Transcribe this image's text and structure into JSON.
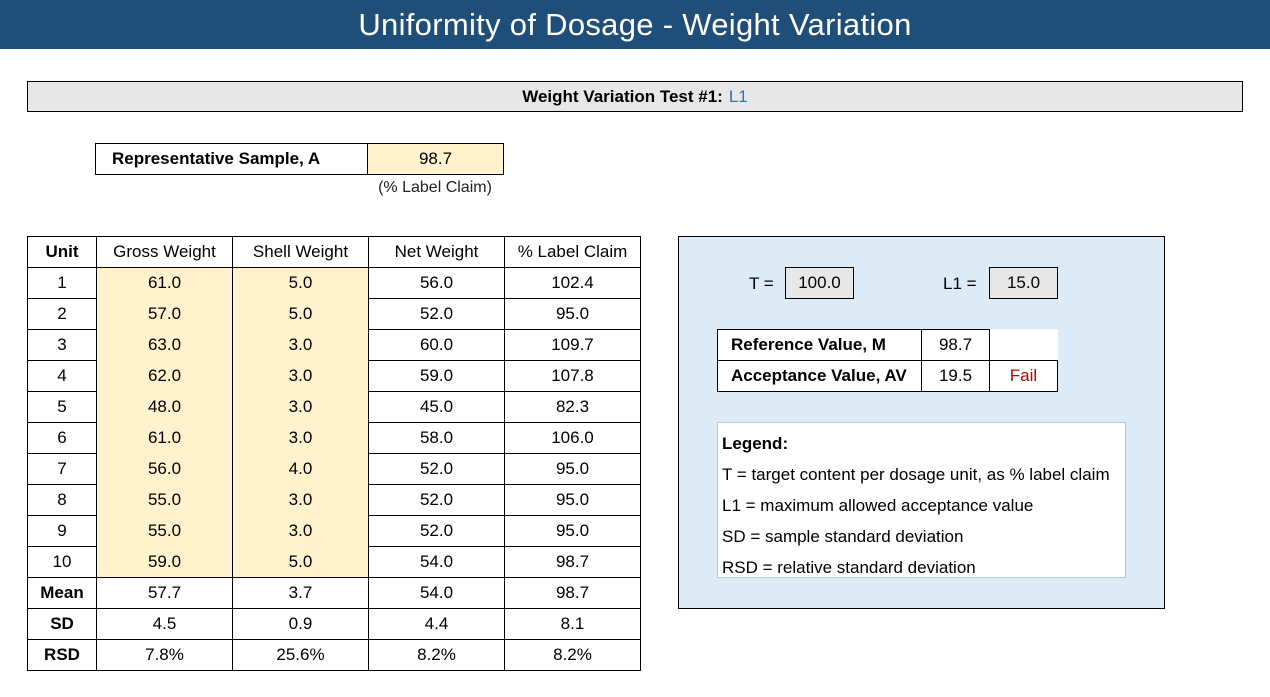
{
  "title": "Uniformity of Dosage - Weight Variation",
  "test": {
    "label": "Weight Variation Test #1:",
    "id": "L1"
  },
  "representative_sample": {
    "label": "Representative Sample, A",
    "value": "98.7",
    "unit": "(% Label Claim)"
  },
  "table": {
    "headers": [
      "Unit",
      "Gross Weight",
      "Shell Weight",
      "Net Weight",
      "% Label Claim"
    ],
    "rows": [
      [
        "1",
        "61.0",
        "5.0",
        "56.0",
        "102.4"
      ],
      [
        "2",
        "57.0",
        "5.0",
        "52.0",
        "95.0"
      ],
      [
        "3",
        "63.0",
        "3.0",
        "60.0",
        "109.7"
      ],
      [
        "4",
        "62.0",
        "3.0",
        "59.0",
        "107.8"
      ],
      [
        "5",
        "48.0",
        "3.0",
        "45.0",
        "82.3"
      ],
      [
        "6",
        "61.0",
        "3.0",
        "58.0",
        "106.0"
      ],
      [
        "7",
        "56.0",
        "4.0",
        "52.0",
        "95.0"
      ],
      [
        "8",
        "55.0",
        "3.0",
        "52.0",
        "95.0"
      ],
      [
        "9",
        "55.0",
        "3.0",
        "52.0",
        "95.0"
      ],
      [
        "10",
        "59.0",
        "5.0",
        "54.0",
        "98.7"
      ]
    ],
    "summary": [
      [
        "Mean",
        "57.7",
        "3.7",
        "54.0",
        "98.7"
      ],
      [
        "SD",
        "4.5",
        "0.9",
        "4.4",
        "8.1"
      ],
      [
        "RSD",
        "7.8%",
        "25.6%",
        "8.2%",
        "8.2%"
      ]
    ]
  },
  "params": {
    "t_label": "T =",
    "t_value": "100.0",
    "l1_label": "L1 =",
    "l1_value": "15.0"
  },
  "results": {
    "reference_label": "Reference Value, M",
    "reference_value": "98.7",
    "acceptance_label": "Acceptance Value, AV",
    "acceptance_value": "19.5",
    "status": "Fail",
    "status_color": "#c00000"
  },
  "legend": {
    "title": "Legend:",
    "items": [
      "T = target content per dosage unit, as % label claim",
      "L1 = maximum allowed acceptance value",
      "SD = sample standard deviation",
      "RSD = relative standard deviation"
    ]
  },
  "colors": {
    "title_bg": "#1f4e79",
    "input_bg": "#fff2cc",
    "panel_bg": "#ddebf7",
    "test_id": "#2e75b6"
  }
}
